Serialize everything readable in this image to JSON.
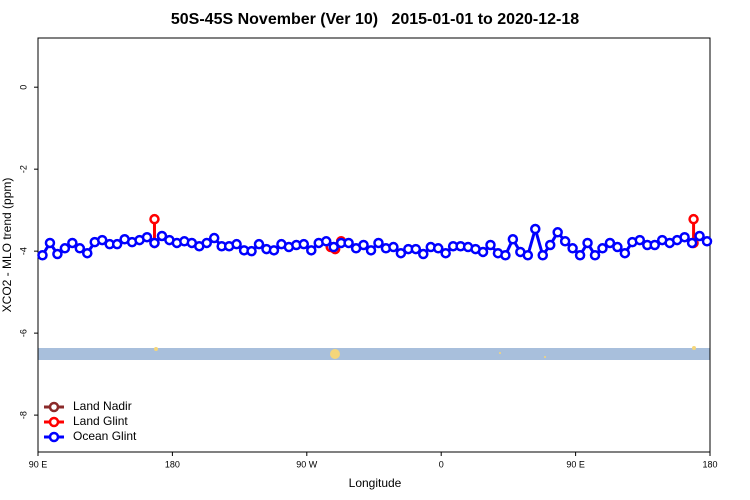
{
  "chart_data": {
    "type": "line",
    "title": "50S-45S November (Ver 10)   2015-01-01 to 2020-12-18",
    "x_label": "Longitude",
    "y_label": "XCO2 - MLO trend (ppm)",
    "xlim": [
      90,
      540
    ],
    "xticks": [
      {
        "value": 90,
        "label": "90 E"
      },
      180,
      {
        "value": 270,
        "label": "90 W"
      },
      {
        "value": 360,
        "label": "0"
      },
      {
        "value": 450,
        "label": "90 E"
      },
      {
        "value": 540,
        "label": "180"
      }
    ],
    "ylim": [
      -8.9,
      1.2
    ],
    "yticks": [
      0,
      -2,
      -4,
      -6,
      -8
    ],
    "legend": "bottom-left",
    "series": [
      {
        "name": "Land Nadir",
        "color": "#8b2a2a",
        "x": [],
        "values": []
      },
      {
        "name": "Land Glint",
        "color": "#ff0000",
        "x": [
          168,
          168,
          200,
          286,
          289,
          293,
          400,
          529,
          529
        ],
        "values": [
          -3.22,
          -3.8,
          null,
          -3.9,
          -3.95,
          -3.76,
          null,
          -3.22,
          -3.8
        ]
      },
      {
        "name": "Ocean Glint",
        "color": "#0000ff",
        "x": [
          93,
          98,
          103,
          108,
          113,
          118,
          123,
          128,
          133,
          138,
          143,
          148,
          153,
          158,
          163,
          168,
          173,
          178,
          183,
          188,
          193,
          198,
          203,
          208,
          213,
          218,
          223,
          228,
          233,
          238,
          243,
          248,
          253,
          258,
          263,
          268,
          273,
          278,
          283,
          288,
          293,
          298,
          303,
          308,
          313,
          318,
          323,
          328,
          333,
          338,
          343,
          348,
          353,
          358,
          363,
          368,
          373,
          378,
          383,
          388,
          393,
          398,
          403,
          408,
          413,
          418,
          423,
          428,
          433,
          438,
          443,
          448,
          453,
          458,
          463,
          468,
          473,
          478,
          483,
          488,
          493,
          498,
          503,
          508,
          513,
          518,
          523,
          528,
          533,
          538
        ],
        "values": [
          -4.1,
          -3.8,
          -4.07,
          -3.93,
          -3.8,
          -3.93,
          -4.05,
          -3.78,
          -3.73,
          -3.83,
          -3.83,
          -3.71,
          -3.78,
          -3.73,
          -3.66,
          -3.8,
          -3.63,
          -3.73,
          -3.8,
          -3.76,
          -3.8,
          -3.88,
          -3.8,
          -3.68,
          -3.88,
          -3.88,
          -3.83,
          -3.98,
          -4.0,
          -3.83,
          -3.95,
          -3.98,
          -3.83,
          -3.9,
          -3.85,
          -3.83,
          -3.98,
          -3.8,
          -3.76,
          -3.9,
          -3.8,
          -3.8,
          -3.93,
          -3.85,
          -3.98,
          -3.8,
          -3.93,
          -3.9,
          -4.05,
          -3.95,
          -3.95,
          -4.07,
          -3.9,
          -3.93,
          -4.05,
          -3.88,
          -3.88,
          -3.9,
          -3.95,
          -4.02,
          -3.85,
          -4.05,
          -4.1,
          -3.71,
          -4.02,
          -4.1,
          -3.46,
          -4.1,
          -3.85,
          -3.54,
          -3.76,
          -3.93,
          -4.1,
          -3.8,
          -4.1,
          -3.93,
          -3.8,
          -3.9,
          -4.05,
          -3.78,
          -3.73,
          -3.85,
          -3.85,
          -3.73,
          -3.8,
          -3.73,
          -3.66,
          -3.8,
          -3.63,
          -3.76
        ]
      }
    ]
  }
}
